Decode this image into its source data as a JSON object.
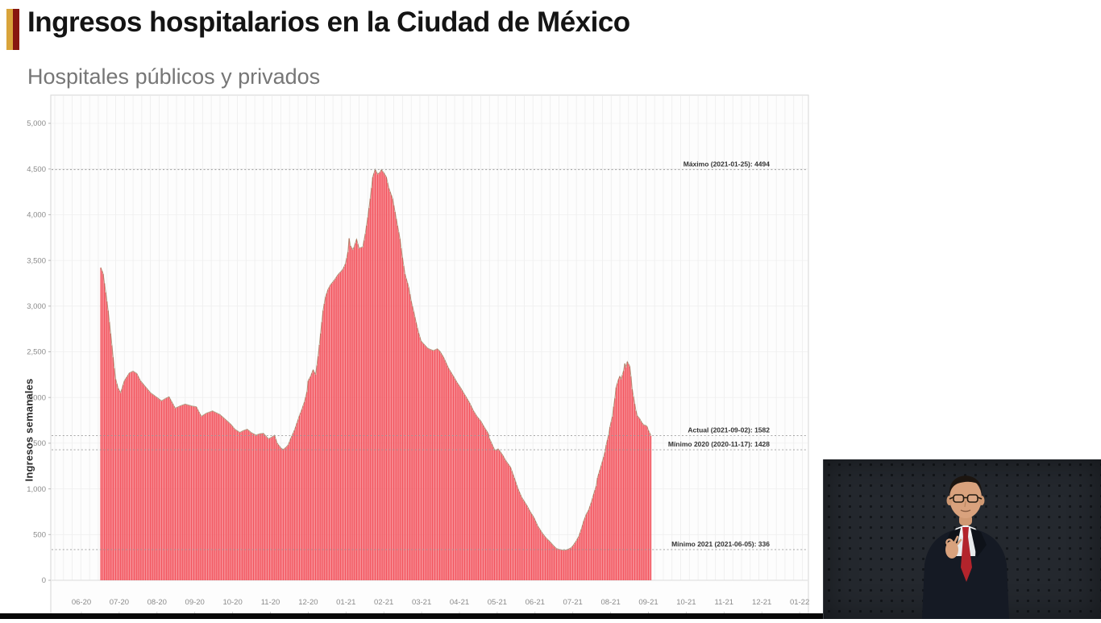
{
  "header": {
    "title": "Ingresos hospitalarios en la Ciudad de México",
    "subtitle": "Hospitales públicos y privados"
  },
  "chart_data": {
    "type": "bar",
    "title": "",
    "xlabel": "",
    "ylabel": "Ingresos semanales",
    "ylim": [
      0,
      5300
    ],
    "grid": true,
    "legend": "none",
    "bar_color": "#f3545e",
    "bar_top_color": "#8f7c55",
    "dotted_line_color": "#9a9a9a",
    "y_tick_values": [
      0,
      500,
      1000,
      1500,
      2000,
      2500,
      3000,
      3500,
      4000,
      4500,
      5000
    ],
    "y_tick_labels": [
      "0",
      "500",
      "1,000",
      "1,500",
      "2,000",
      "2,500",
      "3,000",
      "3,500",
      "4,000",
      "4,500",
      "5,000"
    ],
    "x_tick_labels": [
      "06-20",
      "07-20",
      "08-20",
      "09-20",
      "10-20",
      "11-20",
      "12-20",
      "01-21",
      "02-21",
      "03-21",
      "04-21",
      "05-21",
      "06-21",
      "07-21",
      "08-21",
      "09-21",
      "10-21",
      "11-21",
      "12-21",
      "01-22"
    ],
    "annotations": [
      {
        "name": "maximo",
        "label": "Máximo (2021-01-25): 4494",
        "value": 4494
      },
      {
        "name": "actual",
        "label": "Actual (2021-09-02): 1582",
        "value": 1582
      },
      {
        "name": "minimo-2020",
        "label": "Mínimo 2020 (2020-11-17): 1428",
        "value": 1428
      },
      {
        "name": "minimo-2021",
        "label": "Mínimo 2021 (2021-06-05): 336",
        "value": 336
      }
    ],
    "keypoints": [
      [
        0,
        3420
      ],
      [
        2,
        3350
      ],
      [
        4,
        3150
      ],
      [
        6,
        2950
      ],
      [
        8,
        2700
      ],
      [
        10,
        2440
      ],
      [
        12,
        2200
      ],
      [
        14,
        2100
      ],
      [
        16,
        2050
      ],
      [
        19,
        2180
      ],
      [
        23,
        2265
      ],
      [
        26,
        2285
      ],
      [
        29,
        2260
      ],
      [
        32,
        2180
      ],
      [
        36,
        2115
      ],
      [
        40,
        2050
      ],
      [
        44,
        2010
      ],
      [
        49,
        1960
      ],
      [
        52,
        1985
      ],
      [
        55,
        2005
      ],
      [
        60,
        1880
      ],
      [
        64,
        1905
      ],
      [
        68,
        1925
      ],
      [
        73,
        1905
      ],
      [
        77,
        1895
      ],
      [
        81,
        1790
      ],
      [
        85,
        1825
      ],
      [
        90,
        1850
      ],
      [
        93,
        1830
      ],
      [
        96,
        1810
      ],
      [
        101,
        1750
      ],
      [
        105,
        1700
      ],
      [
        108,
        1650
      ],
      [
        112,
        1615
      ],
      [
        115,
        1635
      ],
      [
        118,
        1650
      ],
      [
        121,
        1615
      ],
      [
        125,
        1585
      ],
      [
        128,
        1600
      ],
      [
        131,
        1605
      ],
      [
        135,
        1545
      ],
      [
        138,
        1565
      ],
      [
        140,
        1585
      ],
      [
        142,
        1500
      ],
      [
        145,
        1445
      ],
      [
        147,
        1428
      ],
      [
        149,
        1450
      ],
      [
        151,
        1480
      ],
      [
        153,
        1550
      ],
      [
        156,
        1640
      ],
      [
        158,
        1720
      ],
      [
        160,
        1800
      ],
      [
        162,
        1870
      ],
      [
        164,
        1950
      ],
      [
        166,
        2060
      ],
      [
        167,
        2180
      ],
      [
        169,
        2230
      ],
      [
        171,
        2300
      ],
      [
        173,
        2250
      ],
      [
        175,
        2450
      ],
      [
        177,
        2700
      ],
      [
        179,
        2950
      ],
      [
        181,
        3100
      ],
      [
        183,
        3180
      ],
      [
        185,
        3230
      ],
      [
        188,
        3280
      ],
      [
        191,
        3340
      ],
      [
        195,
        3400
      ],
      [
        197,
        3460
      ],
      [
        199,
        3590
      ],
      [
        200,
        3740
      ],
      [
        201,
        3660
      ],
      [
        203,
        3615
      ],
      [
        204,
        3645
      ],
      [
        206,
        3730
      ],
      [
        208,
        3630
      ],
      [
        211,
        3645
      ],
      [
        213,
        3790
      ],
      [
        215,
        3970
      ],
      [
        217,
        4175
      ],
      [
        219,
        4410
      ],
      [
        221,
        4494
      ],
      [
        223,
        4440
      ],
      [
        225,
        4465
      ],
      [
        226,
        4490
      ],
      [
        228,
        4455
      ],
      [
        230,
        4410
      ],
      [
        232,
        4290
      ],
      [
        235,
        4175
      ],
      [
        237,
        4030
      ],
      [
        239,
        3880
      ],
      [
        241,
        3735
      ],
      [
        243,
        3530
      ],
      [
        245,
        3350
      ],
      [
        248,
        3205
      ],
      [
        250,
        3055
      ],
      [
        252,
        2940
      ],
      [
        254,
        2820
      ],
      [
        256,
        2705
      ],
      [
        258,
        2615
      ],
      [
        261,
        2570
      ],
      [
        263,
        2540
      ],
      [
        265,
        2525
      ],
      [
        268,
        2510
      ],
      [
        271,
        2530
      ],
      [
        273,
        2505
      ],
      [
        276,
        2440
      ],
      [
        278,
        2380
      ],
      [
        280,
        2320
      ],
      [
        284,
        2230
      ],
      [
        287,
        2160
      ],
      [
        290,
        2100
      ],
      [
        293,
        2030
      ],
      [
        297,
        1940
      ],
      [
        300,
        1855
      ],
      [
        303,
        1790
      ],
      [
        306,
        1740
      ],
      [
        309,
        1670
      ],
      [
        312,
        1605
      ],
      [
        313,
        1550
      ],
      [
        315,
        1490
      ],
      [
        317,
        1430
      ],
      [
        318,
        1420
      ],
      [
        320,
        1435
      ],
      [
        322,
        1400
      ],
      [
        324,
        1360
      ],
      [
        326,
        1310
      ],
      [
        330,
        1235
      ],
      [
        333,
        1120
      ],
      [
        336,
        1000
      ],
      [
        339,
        905
      ],
      [
        343,
        820
      ],
      [
        346,
        745
      ],
      [
        349,
        680
      ],
      [
        352,
        590
      ],
      [
        356,
        505
      ],
      [
        359,
        455
      ],
      [
        362,
        415
      ],
      [
        365,
        370
      ],
      [
        367,
        345
      ],
      [
        369,
        335
      ],
      [
        371,
        330
      ],
      [
        373,
        325
      ],
      [
        375,
        330
      ],
      [
        377,
        340
      ],
      [
        379,
        355
      ],
      [
        381,
        390
      ],
      [
        383,
        430
      ],
      [
        385,
        480
      ],
      [
        387,
        560
      ],
      [
        389,
        650
      ],
      [
        391,
        720
      ],
      [
        393,
        770
      ],
      [
        395,
        850
      ],
      [
        397,
        945
      ],
      [
        399,
        1030
      ],
      [
        400,
        1120
      ],
      [
        402,
        1210
      ],
      [
        404,
        1300
      ],
      [
        406,
        1400
      ],
      [
        407,
        1480
      ],
      [
        409,
        1590
      ],
      [
        410,
        1675
      ],
      [
        412,
        1790
      ],
      [
        413,
        1900
      ],
      [
        414,
        1990
      ],
      [
        415,
        2110
      ],
      [
        417,
        2200
      ],
      [
        418,
        2230
      ],
      [
        419,
        2200
      ],
      [
        421,
        2290
      ],
      [
        422,
        2370
      ],
      [
        423,
        2330
      ],
      [
        424,
        2390
      ],
      [
        426,
        2340
      ],
      [
        427,
        2230
      ],
      [
        428,
        2090
      ],
      [
        430,
        1930
      ],
      [
        431,
        1855
      ],
      [
        432,
        1800
      ],
      [
        434,
        1765
      ],
      [
        435,
        1740
      ],
      [
        436,
        1720
      ],
      [
        437,
        1700
      ],
      [
        439,
        1690
      ],
      [
        440,
        1680
      ],
      [
        441,
        1640
      ],
      [
        443,
        1582
      ]
    ]
  },
  "interpreter_panel": {
    "colors": {
      "background": "#24282e",
      "suit": "#151a24",
      "tie": "#b3242c",
      "shirt": "#e8eaec",
      "skin": "#d9a27d",
      "hair": "#1c1510"
    }
  }
}
